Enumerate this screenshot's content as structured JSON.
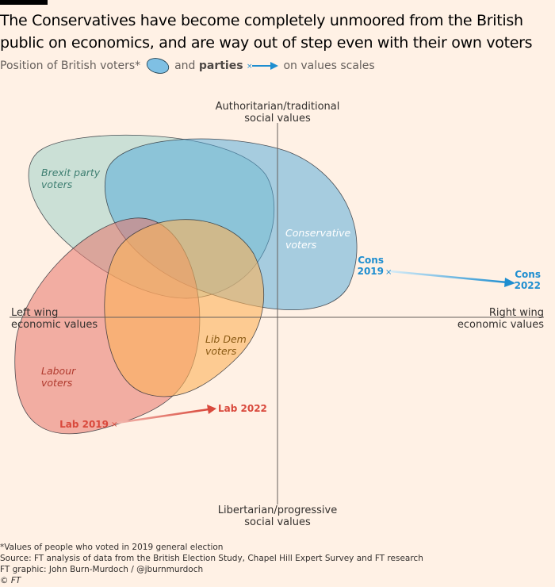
{
  "title": "The Conservatives have become completely unmoored from the British public on economics, and are way out of step even with their own voters",
  "subtitle": {
    "part1": "Position of British voters*",
    "part2": "and",
    "part3": "parties",
    "part4": "on values scales"
  },
  "axes": {
    "top": [
      "Authoritarian/traditional",
      "social values"
    ],
    "bottom": [
      "Libertarian/progressive",
      "social values"
    ],
    "left": [
      "Left wing",
      "economic values"
    ],
    "right": [
      "Right wing",
      "economic values"
    ]
  },
  "groups": [
    {
      "id": "brexit",
      "label": [
        "Brexit party",
        "voters"
      ],
      "color": "#a9d6cc"
    },
    {
      "id": "conservative",
      "label": [
        "Conservative",
        "voters"
      ],
      "color": "#4da7d9"
    },
    {
      "id": "labour",
      "label": [
        "Labour",
        "voters"
      ],
      "color": "#e8756b"
    },
    {
      "id": "libdem",
      "label": [
        "Lib Dem",
        "voters"
      ],
      "color": "#fcb25a"
    }
  ],
  "parties": [
    {
      "id": "cons",
      "from_label": [
        "Cons",
        "2019"
      ],
      "to_label": [
        "Cons",
        "2022"
      ],
      "color": "#1e8ed0"
    },
    {
      "id": "lab",
      "from_label": "Lab 2019",
      "to_label": "Lab 2022",
      "color": "#d9493c"
    }
  ],
  "footer": [
    "*Values of people who voted in 2019 general election",
    "Source: FT analysis of data from the British Election Study, Chapel Hill Expert Survey and FT research",
    "FT graphic: John Burn-Murdoch / @jburnmurdoch",
    "© FT"
  ]
}
